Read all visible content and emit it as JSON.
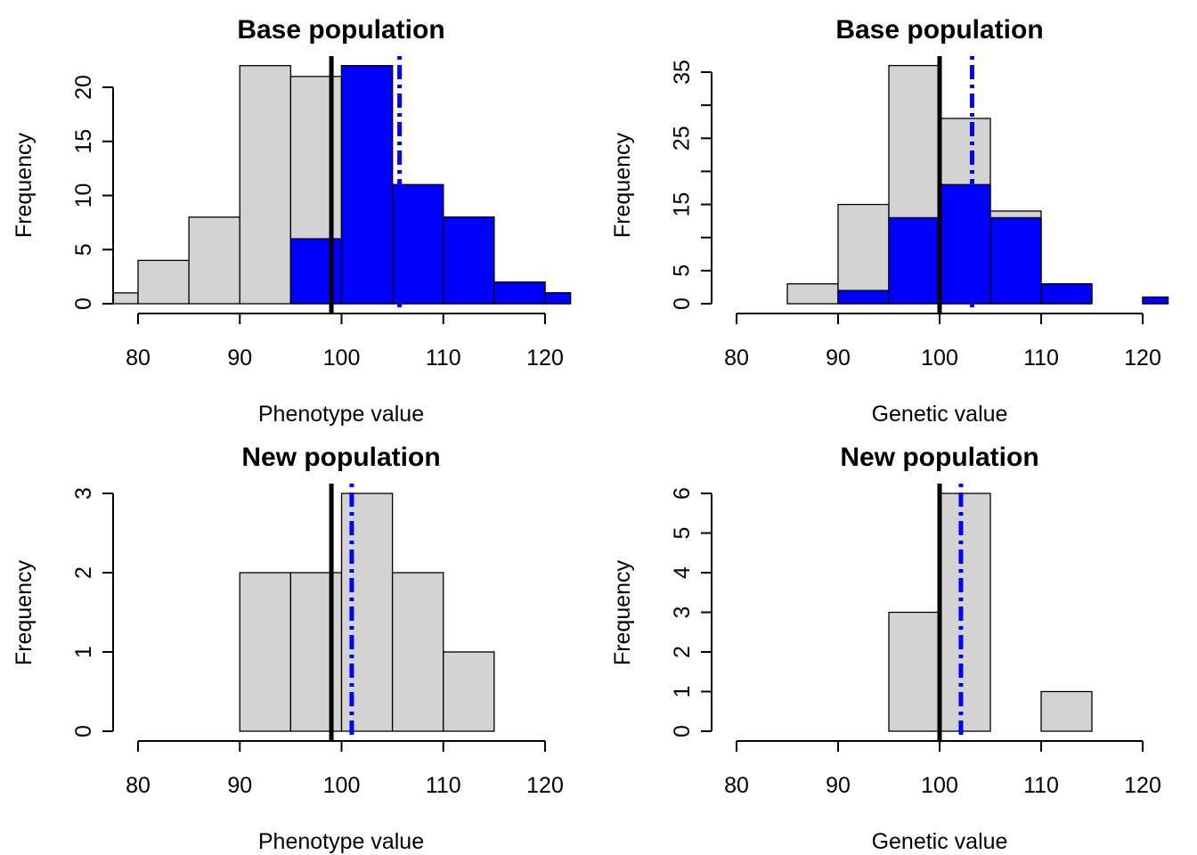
{
  "colors": {
    "gray_bar": "#d3d3d3",
    "blue_bar": "#0000ff",
    "mean_line": "#000000",
    "selected_mean_line": "#0000ff"
  },
  "chart_data": [
    {
      "type": "histogram",
      "title": "Base population",
      "xlabel": "Phenotype value",
      "ylabel": "Frequency",
      "xlim": [
        77.5,
        122.5
      ],
      "ylim": [
        0,
        22
      ],
      "xticks": [
        80,
        90,
        100,
        110,
        120
      ],
      "yticks": [
        0,
        5,
        10,
        15,
        20
      ],
      "series": [
        {
          "name": "all",
          "color": "#d3d3d3",
          "bins": [
            [
              77.5,
              80,
              1
            ],
            [
              80,
              85,
              4
            ],
            [
              85,
              90,
              8
            ],
            [
              90,
              95,
              22
            ],
            [
              95,
              100,
              21
            ],
            [
              100,
              105,
              22
            ],
            [
              105,
              110,
              11
            ],
            [
              110,
              115,
              8
            ],
            [
              115,
              120,
              2
            ],
            [
              120,
              122.5,
              1
            ]
          ]
        },
        {
          "name": "selected",
          "color": "#0000ff",
          "bins": [
            [
              95,
              100,
              6
            ],
            [
              100,
              105,
              22
            ],
            [
              105,
              110,
              11
            ],
            [
              110,
              115,
              8
            ],
            [
              115,
              120,
              2
            ],
            [
              120,
              122.5,
              1
            ]
          ]
        }
      ],
      "vlines": [
        {
          "name": "mean",
          "x": 99,
          "style": "solid",
          "color": "#000000"
        },
        {
          "name": "selected-mean",
          "x": 105.7,
          "style": "dotdash",
          "color": "#0000ff"
        }
      ]
    },
    {
      "type": "histogram",
      "title": "Base population",
      "xlabel": "Genetic value",
      "ylabel": "Frequency",
      "xlim": [
        80,
        122.5
      ],
      "ylim": [
        0,
        35
      ],
      "xticks": [
        80,
        90,
        100,
        110,
        120
      ],
      "yticks": [
        0,
        5,
        10,
        15,
        20,
        25,
        30,
        35
      ],
      "ytick_labels": [
        "0",
        "5",
        "",
        "15",
        "",
        "25",
        "",
        "35"
      ],
      "series": [
        {
          "name": "all",
          "color": "#d3d3d3",
          "bins": [
            [
              85,
              90,
              3
            ],
            [
              90,
              95,
              15
            ],
            [
              95,
              100,
              36
            ],
            [
              100,
              105,
              28
            ],
            [
              105,
              110,
              14
            ],
            [
              110,
              115,
              3
            ],
            [
              120,
              122.5,
              1
            ]
          ]
        },
        {
          "name": "selected",
          "color": "#0000ff",
          "bins": [
            [
              90,
              95,
              2
            ],
            [
              95,
              100,
              13
            ],
            [
              100,
              105,
              18
            ],
            [
              105,
              110,
              13
            ],
            [
              110,
              115,
              3
            ],
            [
              120,
              122.5,
              1
            ]
          ]
        }
      ],
      "vlines": [
        {
          "name": "mean",
          "x": 100,
          "style": "solid",
          "color": "#000000"
        },
        {
          "name": "selected-mean",
          "x": 103.2,
          "style": "dotdash",
          "color": "#0000ff"
        }
      ]
    },
    {
      "type": "histogram",
      "title": "New population",
      "xlabel": "Phenotype value",
      "ylabel": "Frequency",
      "xlim": [
        80,
        120
      ],
      "ylim": [
        0,
        3
      ],
      "xticks": [
        80,
        90,
        100,
        110,
        120
      ],
      "yticks": [
        0,
        1,
        2,
        3
      ],
      "series": [
        {
          "name": "all",
          "color": "#d3d3d3",
          "bins": [
            [
              90,
              95,
              2
            ],
            [
              95,
              100,
              2
            ],
            [
              100,
              105,
              3
            ],
            [
              105,
              110,
              2
            ],
            [
              110,
              115,
              1
            ]
          ]
        }
      ],
      "vlines": [
        {
          "name": "mean",
          "x": 99,
          "style": "solid",
          "color": "#000000"
        },
        {
          "name": "selected-mean",
          "x": 101,
          "style": "dotdash",
          "color": "#0000ff"
        }
      ]
    },
    {
      "type": "histogram",
      "title": "New population",
      "xlabel": "Genetic value",
      "ylabel": "Frequency",
      "xlim": [
        80,
        120
      ],
      "ylim": [
        0,
        6
      ],
      "xticks": [
        80,
        90,
        100,
        110,
        120
      ],
      "yticks": [
        0,
        1,
        2,
        3,
        4,
        5,
        6
      ],
      "series": [
        {
          "name": "all",
          "color": "#d3d3d3",
          "bins": [
            [
              95,
              100,
              3
            ],
            [
              100,
              105,
              6
            ],
            [
              110,
              115,
              1
            ]
          ]
        }
      ],
      "vlines": [
        {
          "name": "mean",
          "x": 100,
          "style": "solid",
          "color": "#000000"
        },
        {
          "name": "selected-mean",
          "x": 102.1,
          "style": "dotdash",
          "color": "#0000ff"
        }
      ]
    }
  ]
}
